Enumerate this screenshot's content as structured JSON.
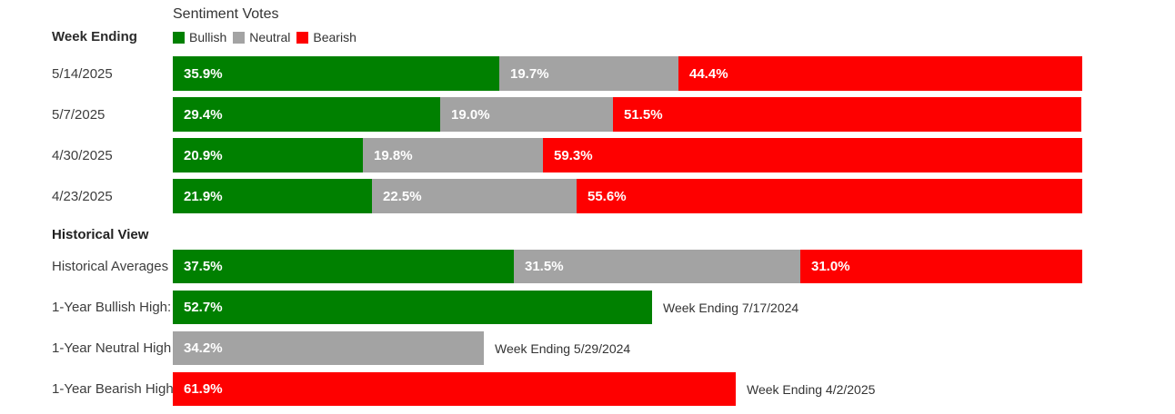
{
  "chart_data": {
    "type": "bar",
    "orientation": "horizontal-stacked",
    "title": "Sentiment Votes",
    "axis_column_label": "Week Ending",
    "legend": [
      "Bullish",
      "Neutral",
      "Bearish"
    ],
    "legend_position": "top",
    "colors": {
      "bullish": "#008000",
      "neutral": "#a3a3a3",
      "bearish": "#fe0000"
    },
    "value_unit": "%",
    "xlim": [
      0,
      100
    ],
    "weekly_rows": [
      {
        "date": "5/14/2025",
        "bullish": "35.9",
        "neutral": "19.7",
        "bearish": "44.4"
      },
      {
        "date": "5/7/2025",
        "bullish": "29.4",
        "neutral": "19.0",
        "bearish": "51.5"
      },
      {
        "date": "4/30/2025",
        "bullish": "20.9",
        "neutral": "19.8",
        "bearish": "59.3"
      },
      {
        "date": "4/23/2025",
        "bullish": "21.9",
        "neutral": "22.5",
        "bearish": "55.6"
      }
    ],
    "historical": {
      "heading": "Historical View",
      "averages": {
        "label": "Historical Averages",
        "bullish": "37.5",
        "neutral": "31.5",
        "bearish": "31.0"
      },
      "highs": [
        {
          "label": "1-Year Bullish High:",
          "series": "bullish",
          "value": "52.7",
          "annotation": "Week Ending 7/17/2024"
        },
        {
          "label": "1-Year Neutral High",
          "series": "neutral",
          "value": "34.2",
          "annotation": "Week Ending 5/29/2024"
        },
        {
          "label": "1-Year Bearish High",
          "series": "bearish",
          "value": "61.9",
          "annotation": "Week Ending 4/2/2025"
        }
      ]
    }
  }
}
